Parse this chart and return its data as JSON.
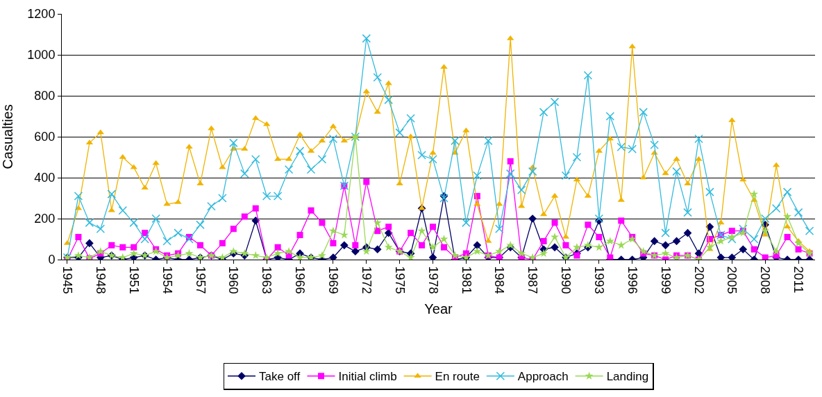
{
  "chart_data": {
    "type": "line",
    "xlabel": "Year",
    "ylabel": "Casualties",
    "x": [
      1945,
      1946,
      1947,
      1948,
      1949,
      1950,
      1951,
      1952,
      1953,
      1954,
      1955,
      1956,
      1957,
      1958,
      1959,
      1960,
      1961,
      1962,
      1963,
      1964,
      1965,
      1966,
      1967,
      1968,
      1969,
      1970,
      1971,
      1972,
      1973,
      1974,
      1975,
      1976,
      1977,
      1978,
      1979,
      1980,
      1981,
      1982,
      1983,
      1984,
      1985,
      1986,
      1987,
      1988,
      1989,
      1990,
      1991,
      1992,
      1993,
      1994,
      1995,
      1996,
      1997,
      1998,
      1999,
      2000,
      2001,
      2002,
      2003,
      2004,
      2005,
      2006,
      2007,
      2008,
      2009,
      2010,
      2011,
      2012
    ],
    "xlim": [
      1944.5,
      2012.5
    ],
    "xticks": [
      1945,
      1948,
      1951,
      1954,
      1957,
      1960,
      1963,
      1966,
      1969,
      1972,
      1975,
      1978,
      1981,
      1984,
      1987,
      1990,
      1993,
      1996,
      1999,
      2002,
      2005,
      2008,
      2011
    ],
    "ylim": [
      0,
      1200
    ],
    "yticks": [
      0,
      200,
      400,
      600,
      800,
      1000,
      1200
    ],
    "grid": "y",
    "legend": "bottom",
    "line_style": "solid",
    "series": [
      {
        "name": "Take off",
        "color": "#000066",
        "marker": "diamond",
        "values": [
          10,
          10,
          80,
          10,
          20,
          0,
          10,
          20,
          0,
          10,
          0,
          0,
          10,
          20,
          0,
          30,
          20,
          190,
          0,
          10,
          0,
          30,
          10,
          0,
          10,
          70,
          40,
          60,
          50,
          130,
          40,
          30,
          250,
          10,
          310,
          0,
          10,
          70,
          10,
          10,
          60,
          10,
          200,
          50,
          60,
          10,
          30,
          60,
          190,
          0,
          0,
          0,
          10,
          90,
          70,
          90,
          130,
          30,
          160,
          10,
          10,
          50,
          0,
          170,
          10,
          0,
          0,
          0
        ]
      },
      {
        "name": "Initial climb",
        "color": "#ff00ff",
        "marker": "square",
        "values": [
          0,
          110,
          5,
          30,
          70,
          60,
          60,
          130,
          50,
          20,
          30,
          110,
          70,
          20,
          80,
          150,
          210,
          250,
          0,
          60,
          20,
          120,
          240,
          180,
          80,
          360,
          70,
          380,
          140,
          160,
          40,
          130,
          70,
          160,
          60,
          10,
          30,
          310,
          20,
          10,
          480,
          10,
          0,
          90,
          180,
          70,
          20,
          170,
          110,
          10,
          190,
          110,
          30,
          20,
          0,
          20,
          20,
          0,
          100,
          120,
          140,
          140,
          50,
          10,
          20,
          110,
          50,
          30
        ]
      },
      {
        "name": "En route",
        "color": "#f0b400",
        "marker": "triangle",
        "values": [
          80,
          250,
          570,
          620,
          240,
          500,
          450,
          350,
          470,
          270,
          280,
          550,
          370,
          640,
          450,
          540,
          540,
          690,
          660,
          490,
          490,
          610,
          530,
          580,
          650,
          580,
          600,
          820,
          720,
          860,
          370,
          600,
          250,
          520,
          940,
          520,
          630,
          270,
          90,
          270,
          1080,
          260,
          450,
          220,
          310,
          110,
          390,
          310,
          530,
          590,
          290,
          1040,
          400,
          520,
          420,
          490,
          370,
          490,
          50,
          180,
          680,
          390,
          290,
          120,
          460,
          160,
          90,
          40
        ]
      },
      {
        "name": "Approach",
        "color": "#33bbdd",
        "marker": "cross",
        "values": [
          10,
          310,
          180,
          150,
          320,
          240,
          180,
          100,
          200,
          90,
          130,
          100,
          170,
          260,
          300,
          570,
          420,
          490,
          310,
          310,
          440,
          530,
          440,
          490,
          590,
          360,
          600,
          1080,
          890,
          780,
          620,
          690,
          510,
          490,
          300,
          580,
          180,
          410,
          580,
          150,
          420,
          340,
          430,
          720,
          770,
          410,
          500,
          900,
          200,
          700,
          550,
          540,
          720,
          560,
          130,
          430,
          230,
          590,
          330,
          120,
          100,
          150,
          100,
          200,
          250,
          330,
          230,
          140
        ]
      },
      {
        "name": "Landing",
        "color": "#99d955",
        "marker": "star",
        "values": [
          10,
          20,
          10,
          40,
          20,
          10,
          30,
          20,
          40,
          10,
          20,
          30,
          10,
          20,
          10,
          40,
          30,
          20,
          10,
          30,
          40,
          10,
          10,
          20,
          140,
          120,
          600,
          40,
          180,
          60,
          40,
          10,
          140,
          60,
          100,
          20,
          10,
          40,
          20,
          40,
          70,
          30,
          10,
          30,
          110,
          10,
          60,
          70,
          60,
          90,
          70,
          100,
          40,
          20,
          30,
          10,
          20,
          0,
          60,
          90,
          110,
          130,
          320,
          140,
          40,
          210,
          80,
          30
        ]
      }
    ]
  }
}
